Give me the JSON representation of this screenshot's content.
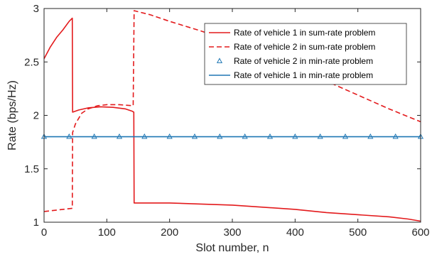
{
  "chart_data": {
    "type": "line",
    "xlabel": "Slot number, n",
    "ylabel": "Rate (bps/Hz)",
    "xlim": [
      0,
      600
    ],
    "ylim": [
      1,
      3
    ],
    "xticks": [
      0,
      100,
      200,
      300,
      400,
      500,
      600
    ],
    "yticks": [
      1,
      1.5,
      2,
      2.5,
      3
    ],
    "ytick_labels": [
      "1",
      "1.5",
      "2",
      "2.5",
      "3"
    ],
    "grid": false,
    "legend_position": "top-right",
    "series": [
      {
        "name": "Rate of vehicle 1 in sum-rate problem",
        "color": "#e31a1c",
        "style": "solid",
        "marker": "none",
        "points": [
          [
            0,
            2.53
          ],
          [
            10,
            2.64
          ],
          [
            20,
            2.73
          ],
          [
            30,
            2.8
          ],
          [
            40,
            2.88
          ],
          [
            45,
            2.91
          ],
          [
            45.5,
            2.03
          ],
          [
            55,
            2.05
          ],
          [
            70,
            2.07
          ],
          [
            90,
            2.08
          ],
          [
            110,
            2.075
          ],
          [
            130,
            2.06
          ],
          [
            140,
            2.04
          ],
          [
            143,
            2.03
          ],
          [
            143.5,
            1.18
          ],
          [
            160,
            1.18
          ],
          [
            200,
            1.18
          ],
          [
            250,
            1.17
          ],
          [
            300,
            1.16
          ],
          [
            350,
            1.14
          ],
          [
            400,
            1.12
          ],
          [
            450,
            1.09
          ],
          [
            500,
            1.07
          ],
          [
            550,
            1.05
          ],
          [
            580,
            1.03
          ],
          [
            600,
            1.01
          ]
        ]
      },
      {
        "name": "Rate of vehicle 2 in sum-rate problem",
        "color": "#e31a1c",
        "style": "dashed",
        "marker": "none",
        "points": [
          [
            0,
            1.1
          ],
          [
            15,
            1.11
          ],
          [
            30,
            1.12
          ],
          [
            45,
            1.13
          ],
          [
            45.5,
            1.84
          ],
          [
            50,
            1.92
          ],
          [
            60,
            2.02
          ],
          [
            70,
            2.06
          ],
          [
            85,
            2.09
          ],
          [
            100,
            2.1
          ],
          [
            120,
            2.1
          ],
          [
            142,
            2.09
          ],
          [
            143.5,
            2.98
          ],
          [
            170,
            2.94
          ],
          [
            200,
            2.88
          ],
          [
            250,
            2.79
          ],
          [
            300,
            2.69
          ],
          [
            350,
            2.58
          ],
          [
            400,
            2.45
          ],
          [
            450,
            2.32
          ],
          [
            500,
            2.19
          ],
          [
            550,
            2.06
          ],
          [
            600,
            1.94
          ]
        ]
      },
      {
        "name": "Rate of vehicle 2 in min-rate problem",
        "color": "#1f77b4",
        "style": "none",
        "marker": "triangle",
        "x": [
          0,
          40,
          80,
          120,
          160,
          200,
          240,
          280,
          320,
          360,
          400,
          440,
          480,
          520,
          560,
          600
        ],
        "values": [
          1.8,
          1.8,
          1.8,
          1.8,
          1.8,
          1.8,
          1.8,
          1.8,
          1.8,
          1.8,
          1.8,
          1.8,
          1.8,
          1.8,
          1.8,
          1.8
        ]
      },
      {
        "name": "Rate of vehicle 1 in min-rate problem",
        "color": "#1f77b4",
        "style": "solid",
        "marker": "none",
        "points": [
          [
            0,
            1.8
          ],
          [
            600,
            1.8
          ]
        ]
      }
    ]
  }
}
